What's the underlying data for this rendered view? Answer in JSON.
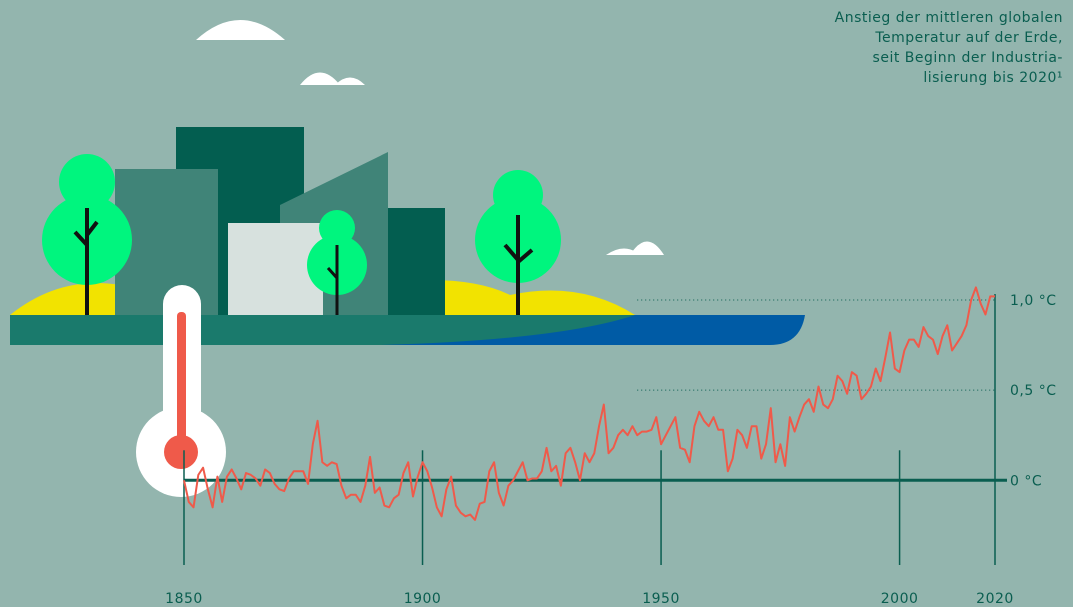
{
  "chart_data": {
    "type": "line",
    "title": [
      "Anstieg der mittleren globalen",
      "Temperatur auf der Erde,",
      "seit Beginn der Industria-",
      "lisierung bis 2020¹"
    ],
    "x": [
      1850,
      1851,
      1852,
      1853,
      1854,
      1855,
      1856,
      1857,
      1858,
      1859,
      1860,
      1861,
      1862,
      1863,
      1864,
      1865,
      1866,
      1867,
      1868,
      1869,
      1870,
      1871,
      1872,
      1873,
      1874,
      1875,
      1876,
      1877,
      1878,
      1879,
      1880,
      1881,
      1882,
      1883,
      1884,
      1885,
      1886,
      1887,
      1888,
      1889,
      1890,
      1891,
      1892,
      1893,
      1894,
      1895,
      1896,
      1897,
      1898,
      1899,
      1900,
      1901,
      1902,
      1903,
      1904,
      1905,
      1906,
      1907,
      1908,
      1909,
      1910,
      1911,
      1912,
      1913,
      1914,
      1915,
      1916,
      1917,
      1918,
      1919,
      1920,
      1921,
      1922,
      1923,
      1924,
      1925,
      1926,
      1927,
      1928,
      1929,
      1930,
      1931,
      1932,
      1933,
      1934,
      1935,
      1936,
      1937,
      1938,
      1939,
      1940,
      1941,
      1942,
      1943,
      1944,
      1945,
      1946,
      1947,
      1948,
      1949,
      1950,
      1951,
      1952,
      1953,
      1954,
      1955,
      1956,
      1957,
      1958,
      1959,
      1960,
      1961,
      1962,
      1963,
      1964,
      1965,
      1966,
      1967,
      1968,
      1969,
      1970,
      1971,
      1972,
      1973,
      1974,
      1975,
      1976,
      1977,
      1978,
      1979,
      1980,
      1981,
      1982,
      1983,
      1984,
      1985,
      1986,
      1987,
      1988,
      1989,
      1990,
      1991,
      1992,
      1993,
      1994,
      1995,
      1996,
      1997,
      1998,
      1999,
      2000,
      2001,
      2002,
      2003,
      2004,
      2005,
      2006,
      2007,
      2008,
      2009,
      2010,
      2011,
      2012,
      2013,
      2014,
      2015,
      2016,
      2017,
      2018,
      2019,
      2020
    ],
    "series": [
      {
        "color": "#ef5a4a",
        "values": [
          0,
          -0.12,
          -0.15,
          0.03,
          0.07,
          -0.05,
          -0.15,
          0.02,
          -0.12,
          0.02,
          0.06,
          0.01,
          -0.05,
          0.04,
          0.03,
          0.01,
          -0.03,
          0.06,
          0.04,
          -0.02,
          -0.05,
          -0.06,
          0.01,
          0.05,
          0.05,
          0.05,
          -0.02,
          0.2,
          0.33,
          0.1,
          0.08,
          0.1,
          0.09,
          -0.03,
          -0.1,
          -0.08,
          -0.08,
          -0.12,
          -0.03,
          0.13,
          -0.07,
          -0.04,
          -0.14,
          -0.15,
          -0.1,
          -0.08,
          0.04,
          0.1,
          -0.09,
          0.02,
          0.1,
          0.05,
          -0.04,
          -0.15,
          -0.2,
          -0.05,
          0.02,
          -0.14,
          -0.18,
          -0.2,
          -0.19,
          -0.22,
          -0.13,
          -0.12,
          0.05,
          0.1,
          -0.07,
          -0.14,
          -0.03,
          0,
          0.05,
          0.1,
          0,
          0.01,
          0.01,
          0.05,
          0.18,
          0.05,
          0.08,
          -0.03,
          0.15,
          0.18,
          0.1,
          0,
          0.15,
          0.1,
          0.15,
          0.3,
          0.42,
          0.15,
          0.18,
          0.25,
          0.28,
          0.25,
          0.3,
          0.25,
          0.27,
          0.27,
          0.28,
          0.35,
          0.2,
          0.25,
          0.3,
          0.35,
          0.18,
          0.17,
          0.1,
          0.3,
          0.38,
          0.33,
          0.3,
          0.35,
          0.28,
          0.28,
          0.05,
          0.12,
          0.28,
          0.25,
          0.18,
          0.3,
          0.3,
          0.12,
          0.2,
          0.4,
          0.1,
          0.2,
          0.08,
          0.35,
          0.27,
          0.35,
          0.42,
          0.45,
          0.38,
          0.52,
          0.42,
          0.4,
          0.45,
          0.58,
          0.55,
          0.48,
          0.6,
          0.58,
          0.45,
          0.48,
          0.52,
          0.62,
          0.55,
          0.68,
          0.82,
          0.62,
          0.6,
          0.72,
          0.78,
          0.78,
          0.74,
          0.85,
          0.8,
          0.78,
          0.7,
          0.8,
          0.86,
          0.72,
          0.76,
          0.8,
          0.86,
          1.0,
          1.07,
          0.98,
          0.92,
          1.02,
          1.02
        ]
      }
    ],
    "xlim": [
      1850,
      2020
    ],
    "xticks": [
      1850,
      1900,
      1950,
      2000,
      2020
    ],
    "ylim": [
      -0.47,
      1.1
    ],
    "yticks": [
      {
        "value": 0,
        "label": "0 °C"
      },
      {
        "value": 0.5,
        "label": "0,5 °C"
      },
      {
        "value": 1,
        "label": "1,0 °C"
      }
    ],
    "grid": true
  }
}
